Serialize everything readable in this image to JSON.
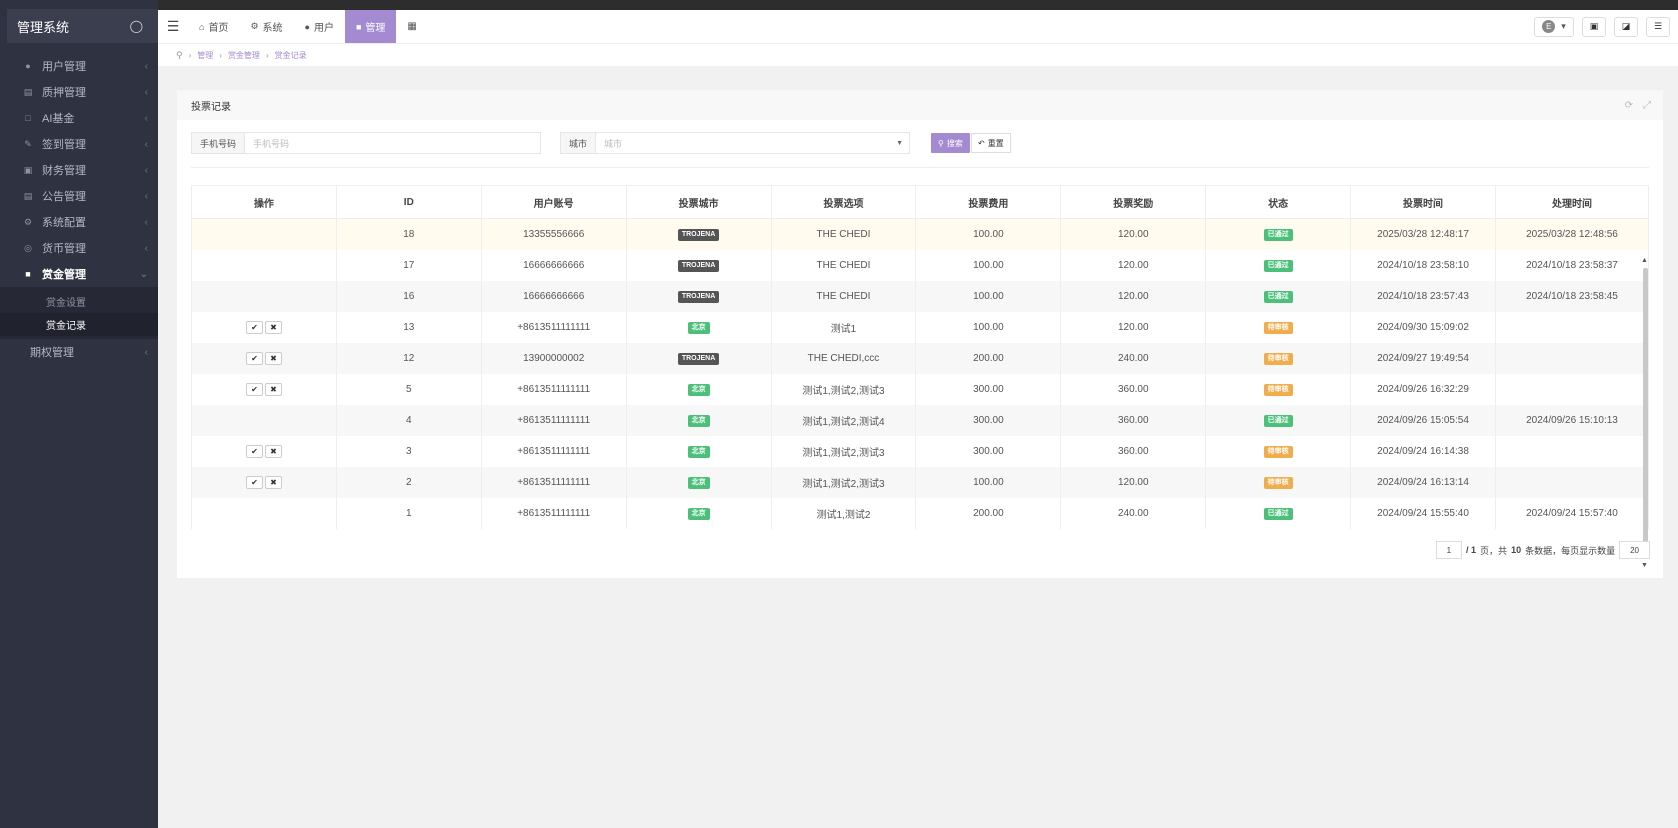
{
  "sidebar": {
    "title": "管理系统",
    "items": [
      {
        "label": "用户管理"
      },
      {
        "label": "质押管理"
      },
      {
        "label": "AI基金"
      },
      {
        "label": "签到管理"
      },
      {
        "label": "财务管理"
      },
      {
        "label": "公告管理"
      },
      {
        "label": "系统配置"
      },
      {
        "label": "货币管理"
      },
      {
        "label": "赏金管理"
      }
    ],
    "sub_items": [
      {
        "label": "赏金设置"
      },
      {
        "label": "赏金记录"
      }
    ],
    "last_item": {
      "label": "期权管理"
    }
  },
  "topbar": {
    "tabs": [
      {
        "label": "首页"
      },
      {
        "label": "系统"
      },
      {
        "label": "用户"
      },
      {
        "label": "管理"
      }
    ],
    "lang_initial": "E"
  },
  "breadcrumb": [
    "管理",
    "赏金管理",
    "赏金记录"
  ],
  "panel": {
    "title": "投票记录"
  },
  "search": {
    "phone_label": "手机号码",
    "phone_placeholder": "手机号码",
    "city_label": "城市",
    "city_placeholder": "城市",
    "search_btn": "搜索",
    "reset_btn": "重置"
  },
  "table": {
    "headers": [
      "操作",
      "ID",
      "用户账号",
      "投票城市",
      "投票选项",
      "投票费用",
      "投票奖励",
      "状态",
      "投票时间",
      "处理时间"
    ],
    "rows": [
      {
        "ops": false,
        "id": "18",
        "account": "13355556666",
        "city": "TROJENA",
        "city_style": "dark",
        "option": "THE CHEDI",
        "fee": "100.00",
        "reward": "120.00",
        "status": "已通过",
        "status_style": "green",
        "vote_time": "2025/03/28 12:48:17",
        "proc_time": "2025/03/28 12:48:56"
      },
      {
        "ops": false,
        "id": "17",
        "account": "16666666666",
        "city": "TROJENA",
        "city_style": "dark",
        "option": "THE CHEDI",
        "fee": "100.00",
        "reward": "120.00",
        "status": "已通过",
        "status_style": "green",
        "vote_time": "2024/10/18 23:58:10",
        "proc_time": "2024/10/18 23:58:37"
      },
      {
        "ops": false,
        "id": "16",
        "account": "16666666666",
        "city": "TROJENA",
        "city_style": "dark",
        "option": "THE CHEDI",
        "fee": "100.00",
        "reward": "120.00",
        "status": "已通过",
        "status_style": "green",
        "vote_time": "2024/10/18 23:57:43",
        "proc_time": "2024/10/18 23:58:45"
      },
      {
        "ops": true,
        "id": "13",
        "account": "+8613511111111",
        "city": "北京",
        "city_style": "green",
        "option": "测试1",
        "fee": "100.00",
        "reward": "120.00",
        "status": "待审核",
        "status_style": "orange",
        "vote_time": "2024/09/30 15:09:02",
        "proc_time": ""
      },
      {
        "ops": true,
        "id": "12",
        "account": "13900000002",
        "city": "TROJENA",
        "city_style": "dark",
        "option": "THE CHEDI,ccc",
        "fee": "200.00",
        "reward": "240.00",
        "status": "待审核",
        "status_style": "orange",
        "vote_time": "2024/09/27 19:49:54",
        "proc_time": ""
      },
      {
        "ops": true,
        "id": "5",
        "account": "+8613511111111",
        "city": "北京",
        "city_style": "green",
        "option": "测试1,测试2,测试3",
        "fee": "300.00",
        "reward": "360.00",
        "status": "待审核",
        "status_style": "orange",
        "vote_time": "2024/09/26 16:32:29",
        "proc_time": ""
      },
      {
        "ops": false,
        "id": "4",
        "account": "+8613511111111",
        "city": "北京",
        "city_style": "green",
        "option": "测试1,测试2,测试4",
        "fee": "300.00",
        "reward": "360.00",
        "status": "已通过",
        "status_style": "green",
        "vote_time": "2024/09/26 15:05:54",
        "proc_time": "2024/09/26 15:10:13"
      },
      {
        "ops": true,
        "id": "3",
        "account": "+8613511111111",
        "city": "北京",
        "city_style": "green",
        "option": "测试1,测试2,测试3",
        "fee": "300.00",
        "reward": "360.00",
        "status": "待审核",
        "status_style": "orange",
        "vote_time": "2024/09/24 16:14:38",
        "proc_time": ""
      },
      {
        "ops": true,
        "id": "2",
        "account": "+8613511111111",
        "city": "北京",
        "city_style": "green",
        "option": "测试1,测试2,测试3",
        "fee": "100.00",
        "reward": "120.00",
        "status": "待审核",
        "status_style": "orange",
        "vote_time": "2024/09/24 16:13:14",
        "proc_time": ""
      },
      {
        "ops": false,
        "id": "1",
        "account": "+8613511111111",
        "city": "北京",
        "city_style": "green",
        "option": "测试1,测试2",
        "fee": "200.00",
        "reward": "240.00",
        "status": "已通过",
        "status_style": "green",
        "vote_time": "2024/09/24 15:55:40",
        "proc_time": "2024/09/24 15:57:40"
      }
    ]
  },
  "pager": {
    "current": "1",
    "total_pages_text": "/ 1",
    "mid_text": "页，共",
    "count": "10",
    "tail_text": "条数据，每页显示数量",
    "page_size": "20"
  },
  "colors": {
    "accent": "#a38ad1",
    "sidebar": "#2f3241",
    "green": "#4cc07a",
    "orange": "#f0ad4e"
  }
}
